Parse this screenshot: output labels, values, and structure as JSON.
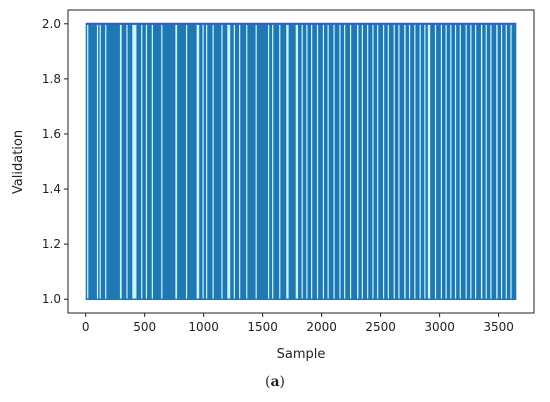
{
  "caption": {
    "open": "(",
    "label": "a",
    "close": ")"
  },
  "chart_data": {
    "type": "line",
    "title": "",
    "xlabel": "Sample",
    "ylabel": "Validation",
    "xlim": [
      -150,
      3800
    ],
    "ylim": [
      0.95,
      2.05
    ],
    "xticks": [
      0,
      500,
      1000,
      1500,
      2000,
      2500,
      3000,
      3500
    ],
    "yticks": [
      1.0,
      1.2,
      1.4,
      1.6,
      1.8,
      2.0
    ],
    "x_range": [
      0,
      3650
    ],
    "y_values_set": [
      1,
      2
    ],
    "series_color": "#1f77b4",
    "background_gap_color": "#c9f5ff",
    "description_values": {
      "n_samples": 3650,
      "values_alternate_between": [
        1,
        2
      ]
    },
    "gaps_at_value_2": [
      [
        12,
        20
      ],
      [
        95,
        98
      ],
      [
        118,
        126
      ],
      [
        165,
        168
      ],
      [
        290,
        305
      ],
      [
        345,
        348
      ],
      [
        395,
        430
      ],
      [
        470,
        474
      ],
      [
        510,
        514
      ],
      [
        560,
        566
      ],
      [
        640,
        650
      ],
      [
        760,
        775
      ],
      [
        850,
        856
      ],
      [
        940,
        962
      ],
      [
        990,
        995
      ],
      [
        1020,
        1030
      ],
      [
        1075,
        1080
      ],
      [
        1150,
        1155
      ],
      [
        1200,
        1225
      ],
      [
        1255,
        1260
      ],
      [
        1300,
        1310
      ],
      [
        1360,
        1366
      ],
      [
        1440,
        1445
      ],
      [
        1545,
        1553
      ],
      [
        1580,
        1585
      ],
      [
        1640,
        1645
      ],
      [
        1700,
        1720
      ],
      [
        1780,
        1800
      ],
      [
        1830,
        1835
      ],
      [
        1870,
        1874
      ],
      [
        1910,
        1918
      ],
      [
        1960,
        1966
      ],
      [
        2010,
        2016
      ],
      [
        2050,
        2056
      ],
      [
        2100,
        2110
      ],
      [
        2150,
        2156
      ],
      [
        2190,
        2196
      ],
      [
        2240,
        2246
      ],
      [
        2300,
        2312
      ],
      [
        2340,
        2346
      ],
      [
        2385,
        2390
      ],
      [
        2430,
        2436
      ],
      [
        2470,
        2476
      ],
      [
        2520,
        2530
      ],
      [
        2560,
        2566
      ],
      [
        2610,
        2616
      ],
      [
        2650,
        2656
      ],
      [
        2700,
        2712
      ],
      [
        2740,
        2746
      ],
      [
        2785,
        2790
      ],
      [
        2830,
        2836
      ],
      [
        2870,
        2876
      ],
      [
        2900,
        2920
      ],
      [
        2960,
        2966
      ],
      [
        3010,
        3016
      ],
      [
        3050,
        3056
      ],
      [
        3090,
        3098
      ],
      [
        3130,
        3136
      ],
      [
        3170,
        3176
      ],
      [
        3220,
        3230
      ],
      [
        3260,
        3266
      ],
      [
        3300,
        3306
      ],
      [
        3350,
        3362
      ],
      [
        3390,
        3396
      ],
      [
        3430,
        3436
      ],
      [
        3480,
        3492
      ],
      [
        3520,
        3526
      ],
      [
        3560,
        3566
      ],
      [
        3600,
        3610
      ]
    ]
  }
}
